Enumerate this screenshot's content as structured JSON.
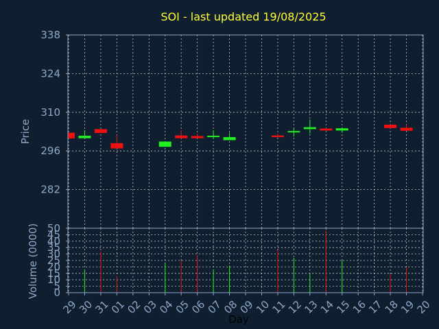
{
  "colors": {
    "background": "#0f1f30",
    "title": "#ffff33",
    "axis_text": "#8fa9c8",
    "up": "#22ee22",
    "down": "#ee1111",
    "grid": "#ffffff"
  },
  "chart_data": [
    {
      "type": "candlestick",
      "title": "SOI - last updated 19/08/2025",
      "ylabel": "Price",
      "ylim": [
        268,
        338
      ],
      "yticks": [
        338,
        324,
        310,
        296,
        282
      ],
      "grid": true,
      "categories": [
        "29",
        "30",
        "31",
        "01",
        "02",
        "03",
        "04",
        "05",
        "06",
        "07",
        "08",
        "09",
        "10",
        "11",
        "12",
        "13",
        "14",
        "15",
        "16",
        "17",
        "18",
        "19",
        "20"
      ],
      "candles": [
        {
          "x": "29",
          "open": 302.6,
          "high": 302.6,
          "low": 300.5,
          "close": 300.5,
          "dir": "down"
        },
        {
          "x": "30",
          "open": 300.6,
          "high": 303.5,
          "low": 300.6,
          "close": 301.5,
          "dir": "up"
        },
        {
          "x": "31",
          "open": 303.9,
          "high": 303.9,
          "low": 302.5,
          "close": 302.5,
          "dir": "down"
        },
        {
          "x": "01",
          "open": 298.8,
          "high": 301.8,
          "low": 296.9,
          "close": 296.9,
          "dir": "down"
        },
        {
          "x": "04",
          "open": 297.5,
          "high": 299.4,
          "low": 297.5,
          "close": 299.4,
          "dir": "up"
        },
        {
          "x": "05",
          "open": 301.6,
          "high": 303.5,
          "low": 300.6,
          "close": 300.6,
          "dir": "down"
        },
        {
          "x": "06",
          "open": 301.4,
          "high": 302.3,
          "low": 300.6,
          "close": 300.6,
          "dir": "down"
        },
        {
          "x": "07",
          "open": 301.0,
          "high": 303.5,
          "low": 300.4,
          "close": 301.5,
          "dir": "up"
        },
        {
          "x": "08",
          "open": 299.9,
          "high": 302.6,
          "low": 299.9,
          "close": 301.0,
          "dir": "up"
        },
        {
          "x": "11",
          "open": 301.6,
          "high": 302.2,
          "low": 300.8,
          "close": 301.0,
          "dir": "down"
        },
        {
          "x": "12",
          "open": 302.8,
          "high": 304.2,
          "low": 301.2,
          "close": 303.2,
          "dir": "up"
        },
        {
          "x": "13",
          "open": 303.9,
          "high": 307.4,
          "low": 302.2,
          "close": 304.6,
          "dir": "up"
        },
        {
          "x": "14",
          "open": 304.1,
          "high": 304.3,
          "low": 303.4,
          "close": 303.4,
          "dir": "down"
        },
        {
          "x": "15",
          "open": 303.4,
          "high": 304.6,
          "low": 302.6,
          "close": 304.2,
          "dir": "up"
        },
        {
          "x": "18",
          "open": 305.5,
          "high": 305.5,
          "low": 304.3,
          "close": 304.3,
          "dir": "down"
        },
        {
          "x": "19",
          "open": 304.4,
          "high": 305.4,
          "low": 303.3,
          "close": 303.3,
          "dir": "down"
        }
      ]
    },
    {
      "type": "bar",
      "ylabel": "Volume (0000)",
      "xlabel": "Day",
      "ylim": [
        0,
        50
      ],
      "yticks": [
        50,
        45,
        40,
        35,
        30,
        25,
        20,
        15,
        10,
        5,
        0
      ],
      "grid": true,
      "bars": [
        {
          "x": "30",
          "value": 18,
          "dir": "up"
        },
        {
          "x": "31",
          "value": 32,
          "dir": "down"
        },
        {
          "x": "01",
          "value": 13,
          "dir": "down"
        },
        {
          "x": "04",
          "value": 23,
          "dir": "up"
        },
        {
          "x": "05",
          "value": 25,
          "dir": "down"
        },
        {
          "x": "06",
          "value": 29,
          "dir": "down"
        },
        {
          "x": "07",
          "value": 18,
          "dir": "up"
        },
        {
          "x": "08",
          "value": 21,
          "dir": "up"
        },
        {
          "x": "11",
          "value": 33,
          "dir": "down"
        },
        {
          "x": "12",
          "value": 27,
          "dir": "up"
        },
        {
          "x": "13",
          "value": 15,
          "dir": "up"
        },
        {
          "x": "14",
          "value": 48,
          "dir": "down"
        },
        {
          "x": "15",
          "value": 25,
          "dir": "up"
        },
        {
          "x": "18",
          "value": 14,
          "dir": "down"
        },
        {
          "x": "19",
          "value": 20,
          "dir": "down"
        }
      ]
    }
  ]
}
